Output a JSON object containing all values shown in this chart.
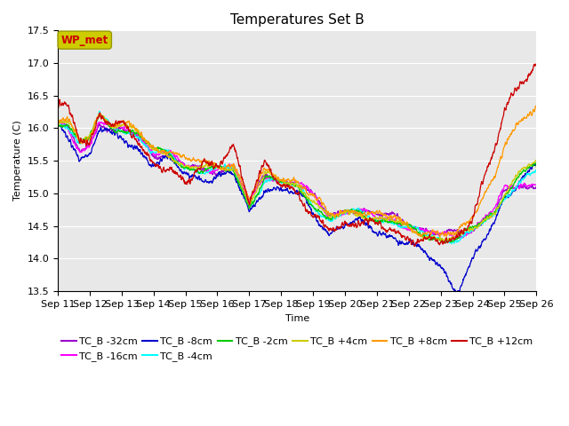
{
  "title": "Temperatures Set B",
  "xlabel": "Time",
  "ylabel": "Temperature (C)",
  "ylim": [
    13.5,
    17.5
  ],
  "series": [
    {
      "label": "TC_B -32cm",
      "color": "#9900cc"
    },
    {
      "label": "TC_B -16cm",
      "color": "#ff00ff"
    },
    {
      "label": "TC_B -8cm",
      "color": "#0000cc"
    },
    {
      "label": "TC_B -4cm",
      "color": "#00ffff"
    },
    {
      "label": "TC_B -2cm",
      "color": "#00cc00"
    },
    {
      "label": "TC_B +4cm",
      "color": "#cccc00"
    },
    {
      "label": "TC_B +8cm",
      "color": "#ff9900"
    },
    {
      "label": "TC_B +12cm",
      "color": "#cc0000"
    }
  ],
  "x_start_day": 11,
  "x_end_day": 26,
  "n_points": 2000,
  "background_color": "#e8e8e8",
  "wp_met_box_facecolor": "#cccc00",
  "wp_met_text_color": "#cc0000",
  "title_fontsize": 11,
  "axis_label_fontsize": 8,
  "tick_label_fontsize": 8,
  "legend_fontsize": 8,
  "grid_color": "#ffffff",
  "yticks": [
    13.5,
    14.0,
    14.5,
    15.0,
    15.5,
    16.0,
    16.5,
    17.0,
    17.5
  ],
  "xtick_days": [
    11,
    12,
    13,
    14,
    15,
    16,
    17,
    18,
    19,
    20,
    21,
    22,
    23,
    24,
    25,
    26
  ]
}
